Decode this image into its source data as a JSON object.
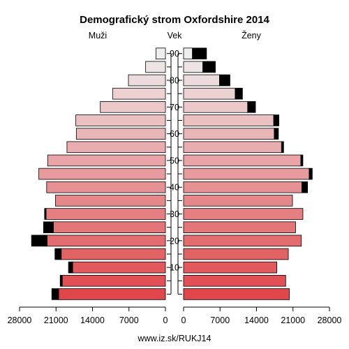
{
  "chart_data": {
    "type": "bar",
    "orientation": "horizontal",
    "title": "Demografický strom Oxfordshire 2014",
    "left_label": "Muži",
    "center_label": "Vek",
    "right_label": "Ženy",
    "source": "www.iz.sk/RUKJ14",
    "x_ticks_male": [
      "28000",
      "21000",
      "14000",
      "7000",
      "0"
    ],
    "x_ticks_female": [
      "0",
      "7000",
      "14000",
      "21000",
      "28000"
    ],
    "xlim": [
      0,
      28000
    ],
    "age_tick_labels": [
      "10",
      "20",
      "30",
      "40",
      "50",
      "60",
      "70",
      "80",
      "90"
    ],
    "age_groups": [
      "0-4",
      "5-9",
      "10-14",
      "15-19",
      "20-24",
      "25-29",
      "30-34",
      "35-39",
      "40-44",
      "45-49",
      "50-54",
      "55-59",
      "60-64",
      "65-69",
      "70-74",
      "75-79",
      "80-84",
      "85-89",
      "90+"
    ],
    "series": [
      {
        "name": "Muži",
        "base": [
          20500,
          19800,
          17800,
          20000,
          22700,
          21500,
          22900,
          21100,
          22800,
          24300,
          22600,
          18900,
          17100,
          17200,
          12500,
          10100,
          7100,
          3800,
          1800
        ],
        "excess": [
          1300,
          400,
          800,
          1200,
          3000,
          1900,
          300,
          0,
          0,
          0,
          0,
          0,
          0,
          0,
          0,
          0,
          0,
          0,
          0
        ]
      },
      {
        "name": "Ženy",
        "base": [
          20300,
          19600,
          17900,
          20100,
          22600,
          21500,
          22900,
          20900,
          22700,
          24100,
          22500,
          18800,
          17400,
          17300,
          12300,
          9900,
          6900,
          3700,
          1700
        ],
        "excess": [
          0,
          0,
          0,
          0,
          0,
          0,
          0,
          0,
          1100,
          600,
          400,
          400,
          800,
          1000,
          1500,
          1400,
          2000,
          2400,
          2700
        ]
      }
    ],
    "colors": {
      "excess": "#000000",
      "outline": "#000000",
      "bottom_fill": "#e0474b",
      "top_fill": "#eeeeee"
    }
  }
}
